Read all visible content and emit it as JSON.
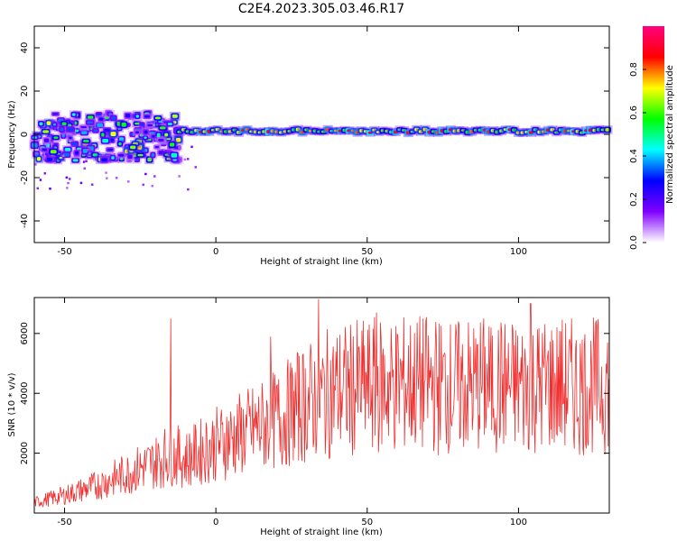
{
  "title": "C2E4.2023.305.03.46.R17",
  "chart_data": [
    {
      "type": "heatmap",
      "xlabel": "Height of straight line (km)",
      "ylabel": "Frequency (Hz)",
      "xlim": [
        -60,
        130
      ],
      "ylim": [
        -50,
        50
      ],
      "xticks": [
        -50,
        0,
        50,
        100
      ],
      "yticks": [
        -40,
        -20,
        0,
        20,
        40
      ],
      "grid": false,
      "colorbar": {
        "label": "Normalized spectral amplitude",
        "range": [
          0,
          1
        ],
        "ticks": [
          0.0,
          0.2,
          0.4,
          0.6,
          0.8
        ],
        "tick_labels": [
          "0.0",
          "0.2",
          "0.4",
          "0.6",
          "0.8"
        ],
        "colormap": [
          "#ffffff",
          "#8000ff",
          "#0000ff",
          "#00ffff",
          "#00ff00",
          "#ffff00",
          "#ff0000",
          "#ff0080"
        ]
      },
      "ridge": {
        "x_start": -12,
        "x_end": 130,
        "frequency_hz": 1.5,
        "amplitude": 0.9
      },
      "scatter_region": {
        "x_start": -60,
        "x_end": -12,
        "frequency_range_hz": [
          -12,
          10
        ],
        "amplitude": 0.5
      }
    },
    {
      "type": "line",
      "xlabel": "Height of straight line (km)",
      "ylabel": "SNR (10 * v/v)",
      "xlim": [
        -60,
        130
      ],
      "ylim": [
        0,
        7200
      ],
      "xticks": [
        -50,
        0,
        50,
        100
      ],
      "yticks": [
        2000,
        4000,
        6000
      ],
      "color": "#f03030",
      "grid": false,
      "trend": {
        "x": [
          -60,
          -50,
          -40,
          -30,
          -20,
          -15,
          -10,
          0,
          10,
          20,
          30,
          40,
          50,
          60,
          70,
          80,
          90,
          100,
          110,
          120,
          130
        ],
        "y": [
          350,
          600,
          900,
          1300,
          1700,
          2000,
          1800,
          2300,
          2700,
          3100,
          3700,
          4100,
          4200,
          4300,
          4300,
          4200,
          4300,
          4200,
          4300,
          4200,
          4300
        ]
      },
      "peaks": [
        {
          "x": 34,
          "y": 7150
        },
        {
          "x": 104,
          "y": 7000
        },
        {
          "x": -15,
          "y": 6500
        },
        {
          "x": 53,
          "y": 6700
        },
        {
          "x": 91,
          "y": 6200
        },
        {
          "x": 18,
          "y": 5900
        }
      ]
    }
  ]
}
